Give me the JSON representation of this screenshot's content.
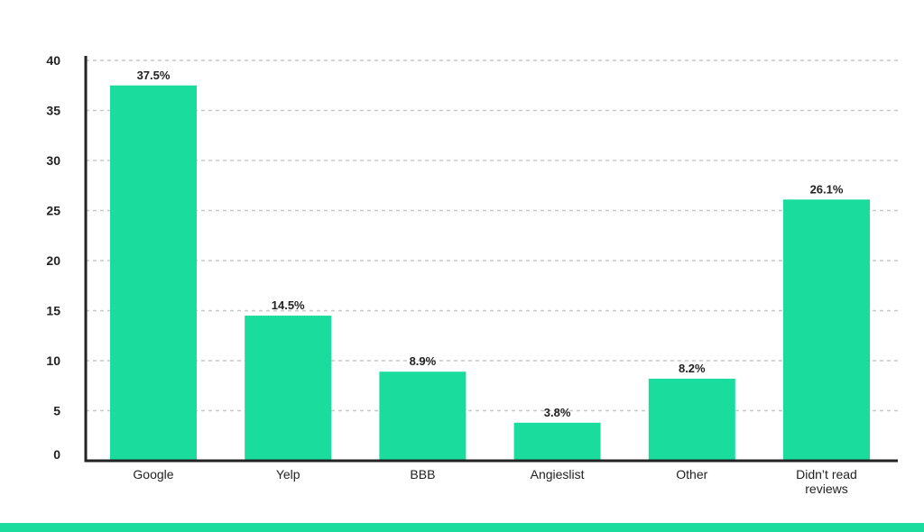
{
  "chart_data": {
    "type": "bar",
    "categories": [
      "Google",
      "Yelp",
      "BBB",
      "Angieslist",
      "Other",
      "Didn’t read reviews"
    ],
    "values": [
      37.5,
      14.5,
      8.9,
      3.8,
      8.2,
      26.1
    ],
    "data_labels": [
      "37.5%",
      "14.5%",
      "8.9%",
      "3.8%",
      "8.2%",
      "26.1%"
    ],
    "y_ticks": [
      0,
      5,
      10,
      15,
      20,
      25,
      30,
      35,
      40
    ],
    "ylim": [
      0,
      40
    ],
    "title": "",
    "xlabel": "",
    "ylabel": "",
    "grid": true,
    "grid_style": "dashed",
    "legend": "none",
    "colors": {
      "bar": "#1adc9d",
      "axis": "#222222",
      "grid": "#c8c8c8",
      "text": "#222222",
      "bottom_band": "#1adc9d"
    }
  }
}
